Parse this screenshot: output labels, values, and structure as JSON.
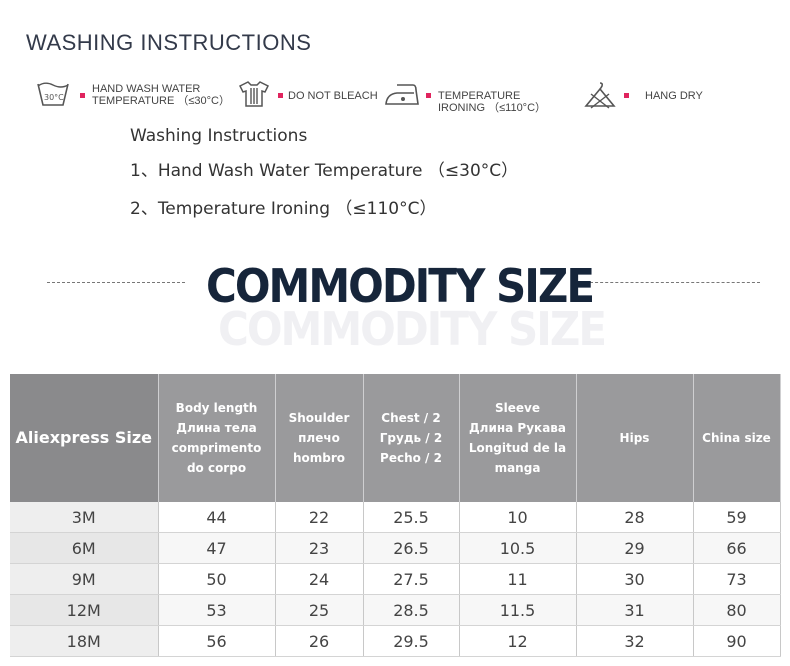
{
  "washing": {
    "title": "WASHING INSTRUCTIONS",
    "icons": [
      {
        "icon": "hand-wash-icon",
        "icon_text": "30°C",
        "label_lines": [
          "HAND WASH WATER",
          "TEMPERATURE （≤30°C）"
        ]
      },
      {
        "icon": "do-not-bleach-icon",
        "label_lines": [
          "DO NOT BLEACH"
        ]
      },
      {
        "icon": "iron-icon",
        "label_lines": [
          "TEMPERATURE",
          "IRONING （≤110°C）"
        ]
      },
      {
        "icon": "hang-dry-icon",
        "label_lines": [
          "HANG DRY"
        ]
      }
    ],
    "heading": "Washing Instructions",
    "lines": [
      "1、Hand Wash Water Temperature （≤30°C）",
      "2、Temperature Ironing （≤110°C）"
    ]
  },
  "commodity": {
    "title": "COMMODITY SIZE",
    "shadow": "COMMODITY SIZE"
  },
  "size_table": {
    "headers": [
      [
        "Aliexpress Size"
      ],
      [
        "Body length",
        "Длина тела",
        "comprimento",
        "do corpo"
      ],
      [
        "Shoulder",
        "плечо",
        "hombro"
      ],
      [
        "Chest / 2",
        "Грудь / 2",
        "Pecho / 2"
      ],
      [
        "Sleeve",
        "Длина Рукава",
        "Longitud de la",
        "manga"
      ],
      [
        "Hips"
      ],
      [
        "China size"
      ]
    ],
    "rows": [
      [
        "3M",
        "44",
        "22",
        "25.5",
        "10",
        "28",
        "59"
      ],
      [
        "6M",
        "47",
        "23",
        "26.5",
        "10.5",
        "29",
        "66"
      ],
      [
        "9M",
        "50",
        "24",
        "27.5",
        "11",
        "30",
        "73"
      ],
      [
        "12M",
        "53",
        "25",
        "28.5",
        "11.5",
        "31",
        "80"
      ],
      [
        "18M",
        "56",
        "26",
        "29.5",
        "12",
        "32",
        "90"
      ]
    ]
  },
  "colors": {
    "bullet": "#e0245e",
    "title_dark": "#16253a",
    "header_bg": "#9a9a9c"
  }
}
